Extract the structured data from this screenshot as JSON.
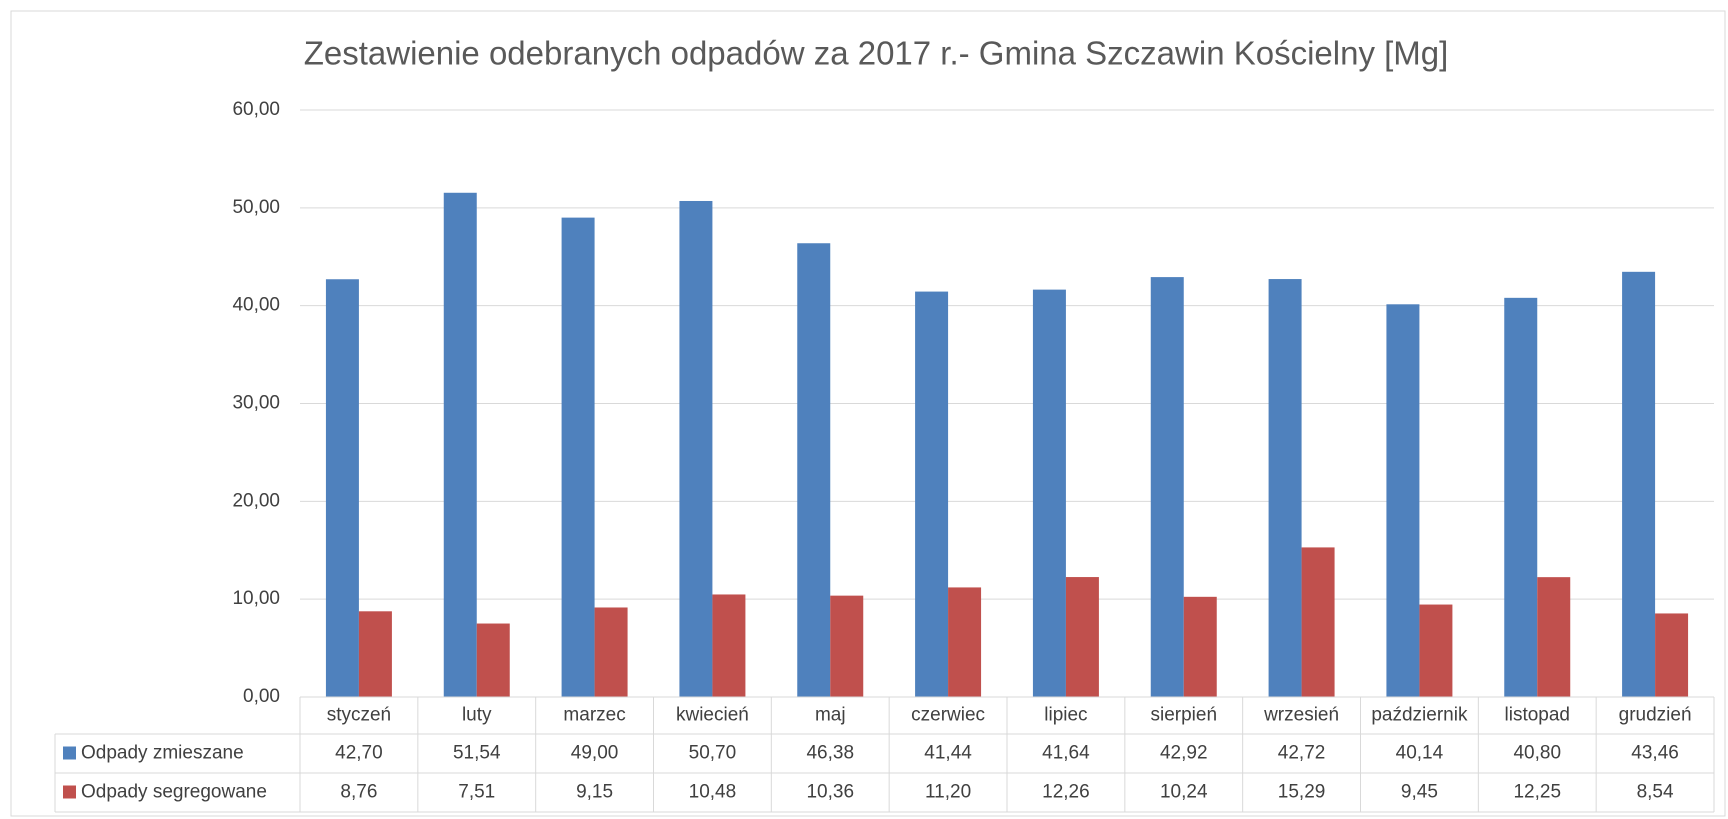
{
  "chart_data": {
    "type": "bar",
    "title": "Zestawienie odebranych odpadów za 2017 r.- Gmina Szczawin Kościelny [Mg]",
    "categories": [
      "styczeń",
      "luty",
      "marzec",
      "kwiecień",
      "maj",
      "czerwiec",
      "lipiec",
      "sierpień",
      "wrzesień",
      "październik",
      "listopad",
      "grudzień"
    ],
    "series": [
      {
        "name": "Odpady zmieszane",
        "color": "#4f81bd",
        "values": [
          42.7,
          51.54,
          49.0,
          50.7,
          46.38,
          41.44,
          41.64,
          42.92,
          42.72,
          40.14,
          40.8,
          43.46
        ],
        "value_labels": [
          "42,70",
          "51,54",
          "49,00",
          "50,70",
          "46,38",
          "41,44",
          "41,64",
          "42,92",
          "42,72",
          "40,14",
          "40,80",
          "43,46"
        ]
      },
      {
        "name": "Odpady segregowane",
        "color": "#c0504d",
        "values": [
          8.76,
          7.51,
          9.15,
          10.48,
          10.36,
          11.2,
          12.26,
          10.24,
          15.29,
          9.45,
          12.25,
          8.54
        ],
        "value_labels": [
          "8,76",
          "7,51",
          "9,15",
          "10,48",
          "10,36",
          "11,20",
          "12,26",
          "10,24",
          "15,29",
          "9,45",
          "12,25",
          "8,54"
        ]
      }
    ],
    "ylim": [
      0,
      60
    ],
    "yticks": [
      {
        "value": 0,
        "label": "0,00"
      },
      {
        "value": 10,
        "label": "10,00"
      },
      {
        "value": 20,
        "label": "20,00"
      },
      {
        "value": 30,
        "label": "30,00"
      },
      {
        "value": 40,
        "label": "40,00"
      },
      {
        "value": 50,
        "label": "50,00"
      },
      {
        "value": 60,
        "label": "60,00"
      }
    ],
    "grid": true
  }
}
